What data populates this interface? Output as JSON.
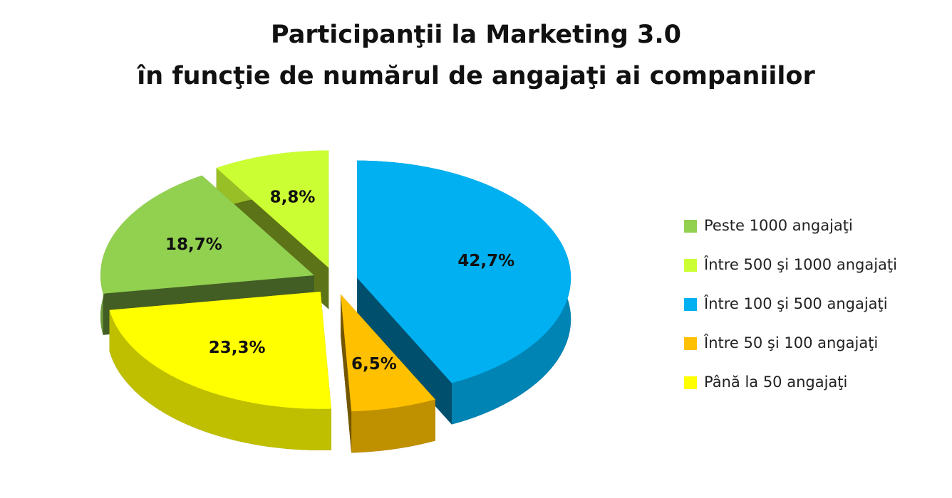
{
  "chart_data": {
    "type": "pie3d",
    "title": "Participanţii la Marketing 3.0",
    "subtitle": "în funcţie de numărul de angajaţi ai companiilor",
    "categories": [
      "Peste 1000 angajaţi",
      "Între 500 şi 1000 angajaţi",
      "Între 100 şi 500 angajaţi",
      "Între 50 şi 100 angajaţi",
      "Până la 50 angajaţi"
    ],
    "values": [
      18.7,
      8.8,
      42.7,
      6.5,
      23.3
    ],
    "value_labels": [
      "18,7%",
      "8,8%",
      "42,7%",
      "6,5%",
      "23,3%"
    ],
    "colors": [
      "#92d050",
      "#ccff33",
      "#00b0f0",
      "#ffc000",
      "#ffff00"
    ],
    "legend": "right"
  }
}
